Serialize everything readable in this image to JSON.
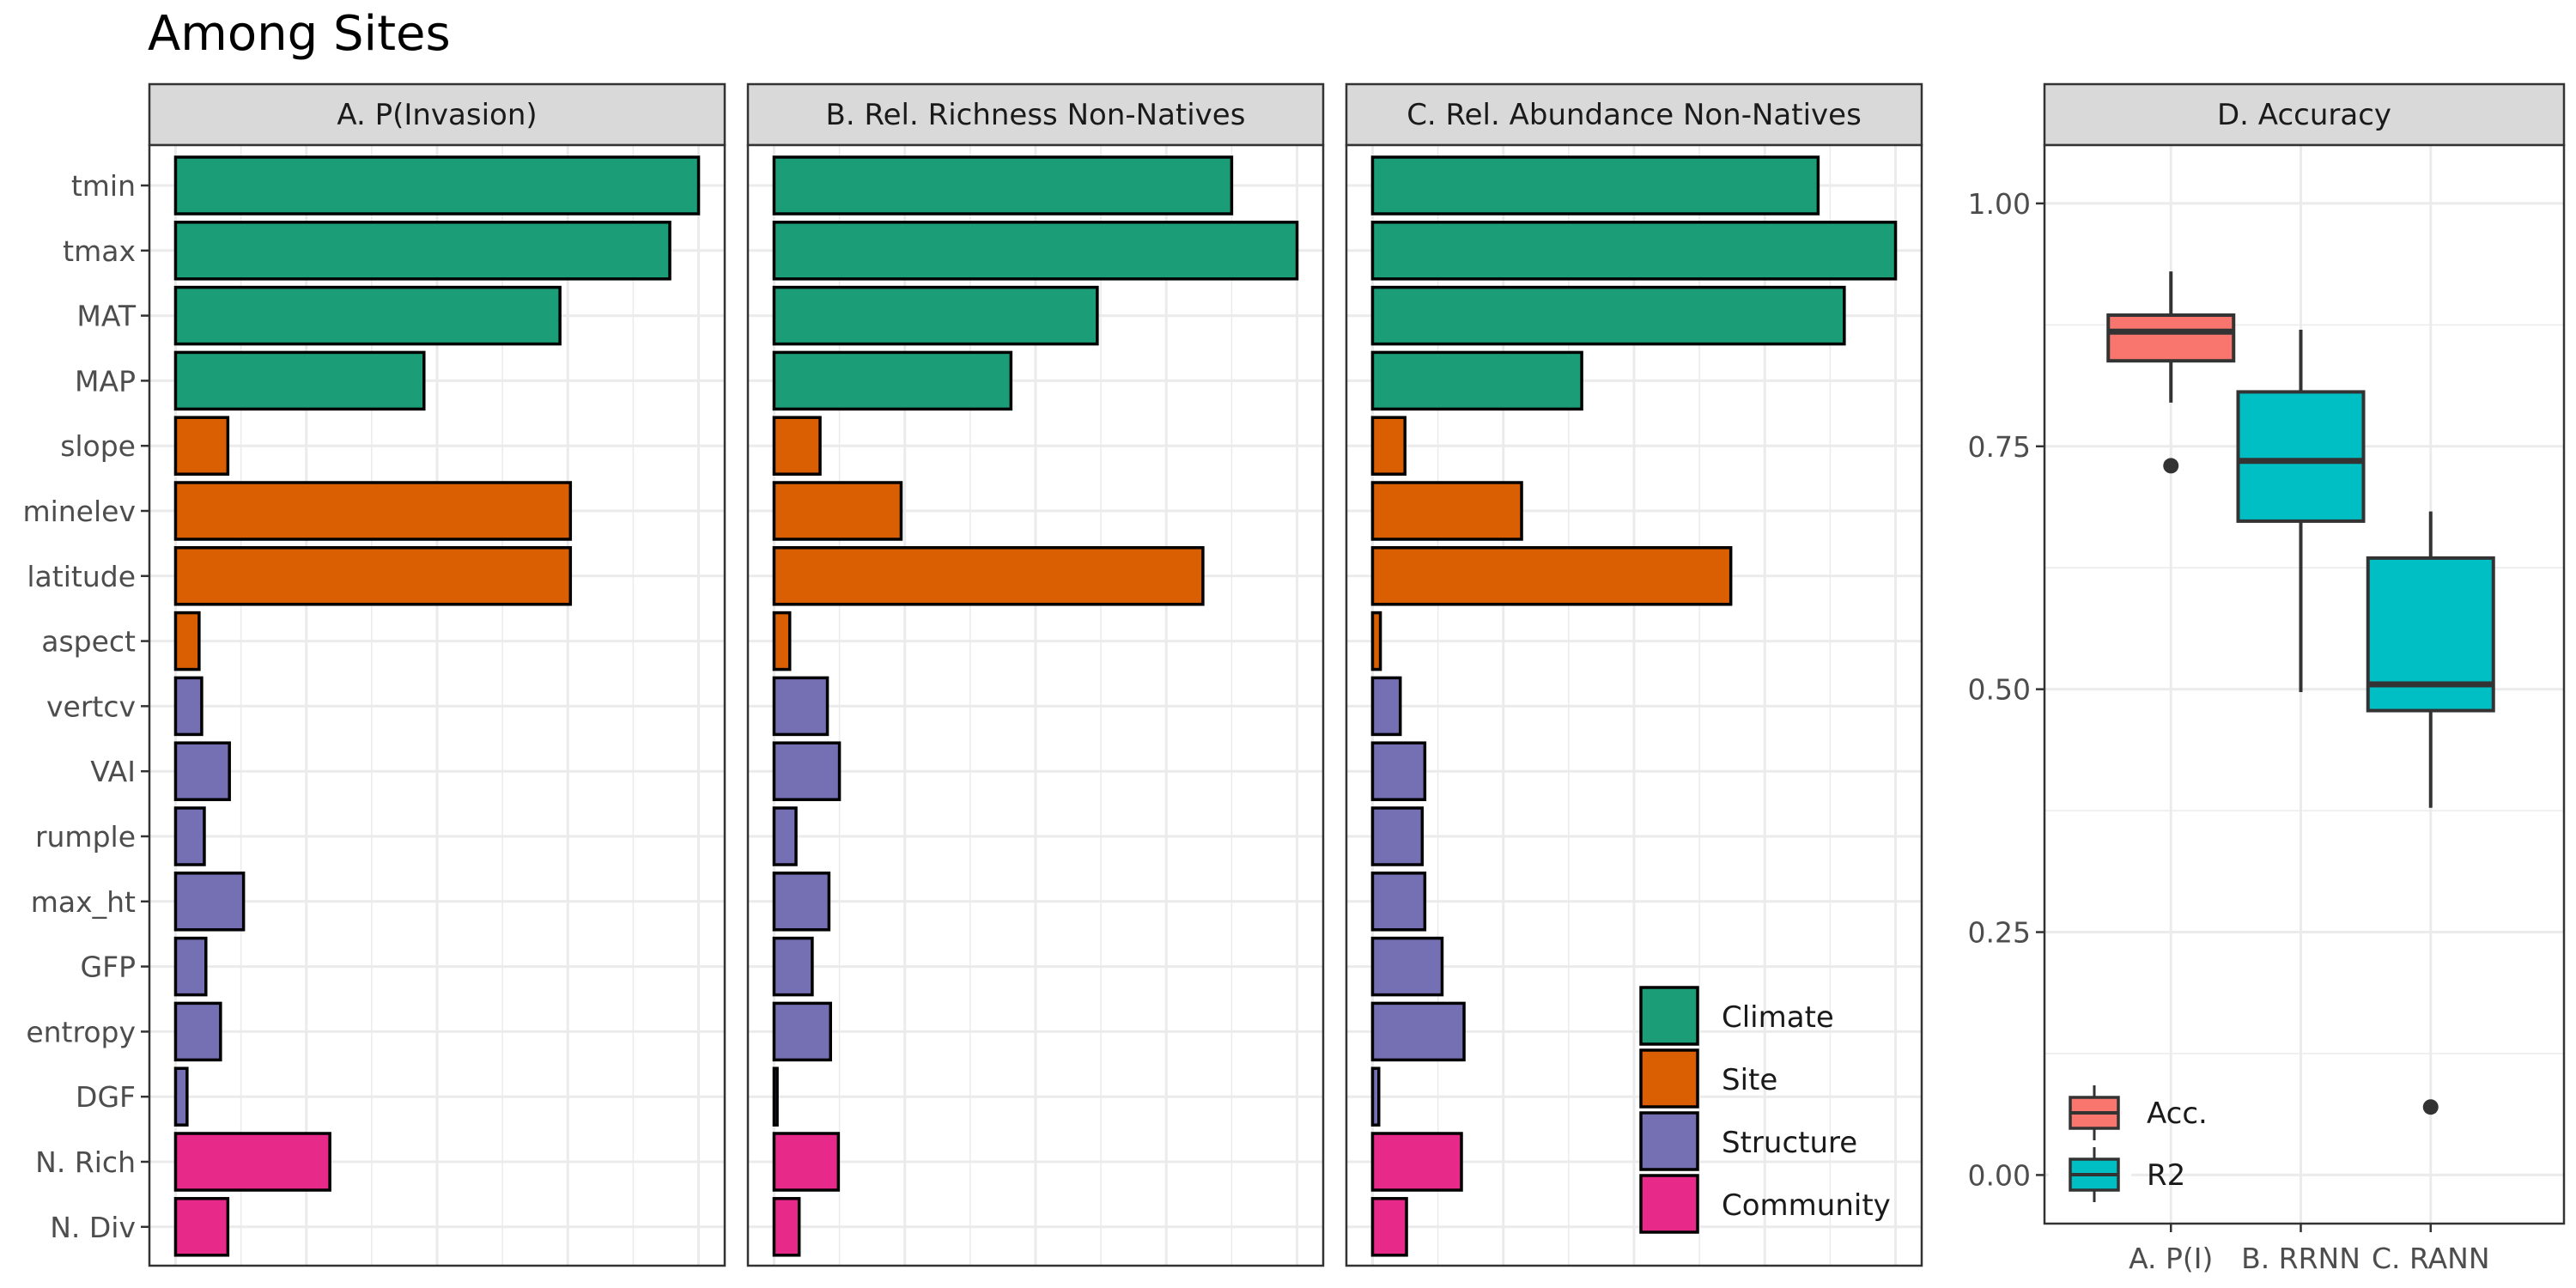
{
  "page_title": "Among Sites",
  "colors": {
    "Climate": "#1B9E77",
    "Site": "#D95F02",
    "Structure": "#7570B3",
    "Community": "#E7298A",
    "Acc.": "#F8766D",
    "R2": "#00BFC4"
  },
  "chart_data": [
    {
      "type": "bar",
      "title": "A. P(Invasion)",
      "categories": [
        "tmin",
        "tmax",
        "MAT",
        "MAP",
        "slope",
        "minelev",
        "latitude",
        "aspect",
        "vertcv",
        "VAI",
        "rumple",
        "max_ht",
        "GFP",
        "entropy",
        "DGF",
        "N. Rich",
        "N. Div"
      ],
      "groups": [
        "Climate",
        "Climate",
        "Climate",
        "Climate",
        "Site",
        "Site",
        "Site",
        "Site",
        "Structure",
        "Structure",
        "Structure",
        "Structure",
        "Structure",
        "Structure",
        "Structure",
        "Community",
        "Community"
      ],
      "values": [
        100,
        94.5,
        73.5,
        47.5,
        10,
        75.5,
        75.5,
        4.5,
        5,
        10.3,
        5.5,
        13,
        5.8,
        8.6,
        2.2,
        29.5,
        10
      ],
      "xlim": [
        -5,
        105
      ]
    },
    {
      "type": "bar",
      "title": "B. Rel. Richness Non-Natives",
      "categories": [
        "tmin",
        "tmax",
        "MAT",
        "MAP",
        "slope",
        "minelev",
        "latitude",
        "aspect",
        "vertcv",
        "VAI",
        "rumple",
        "max_ht",
        "GFP",
        "entropy",
        "DGF",
        "N. Rich",
        "N. Div"
      ],
      "groups": [
        "Climate",
        "Climate",
        "Climate",
        "Climate",
        "Site",
        "Site",
        "Site",
        "Site",
        "Structure",
        "Structure",
        "Structure",
        "Structure",
        "Structure",
        "Structure",
        "Structure",
        "Community",
        "Community"
      ],
      "values": [
        87.5,
        100,
        61.8,
        45.3,
        8.8,
        24.3,
        82,
        3,
        10.2,
        12.5,
        4.2,
        10.5,
        7.3,
        10.8,
        0.6,
        12.3,
        4.8
      ],
      "xlim": [
        -5,
        105
      ]
    },
    {
      "type": "bar",
      "title": "C. Rel. Abundance Non-Natives",
      "categories": [
        "tmin",
        "tmax",
        "MAT",
        "MAP",
        "slope",
        "minelev",
        "latitude",
        "aspect",
        "vertcv",
        "VAI",
        "rumple",
        "max_ht",
        "GFP",
        "entropy",
        "DGF",
        "N. Rich",
        "N. Div"
      ],
      "groups": [
        "Climate",
        "Climate",
        "Climate",
        "Climate",
        "Site",
        "Site",
        "Site",
        "Site",
        "Structure",
        "Structure",
        "Structure",
        "Structure",
        "Structure",
        "Structure",
        "Structure",
        "Community",
        "Community"
      ],
      "values": [
        85.2,
        100,
        90.2,
        40,
        6.2,
        28.5,
        68.5,
        1.5,
        5.3,
        10,
        9.5,
        10,
        13.3,
        17.5,
        1.2,
        17,
        6.5
      ],
      "xlim": [
        -5,
        105
      ]
    },
    {
      "type": "box",
      "title": "D. Accuracy",
      "categories": [
        "A. P(I)",
        "B. RRNN",
        "C. RANN"
      ],
      "fill_groups": [
        "Acc.",
        "R2",
        "R2"
      ],
      "boxes": [
        {
          "whisker_low": 0.795,
          "q1": 0.838,
          "median": 0.868,
          "q3": 0.885,
          "whisker_high": 0.93,
          "outliers": [
            0.73
          ]
        },
        {
          "whisker_low": 0.497,
          "q1": 0.673,
          "median": 0.735,
          "q3": 0.806,
          "whisker_high": 0.87,
          "outliers": []
        },
        {
          "whisker_low": 0.378,
          "q1": 0.478,
          "median": 0.505,
          "q3": 0.635,
          "whisker_high": 0.683,
          "outliers": [
            0.07
          ]
        }
      ],
      "ylim": [
        -0.05,
        1.06
      ],
      "yticks": [
        0.0,
        0.25,
        0.5,
        0.75,
        1.0
      ],
      "ytick_labels": [
        "0.00",
        "0.25",
        "0.50",
        "0.75",
        "1.00"
      ]
    }
  ],
  "legend_groups": {
    "items": [
      "Climate",
      "Site",
      "Structure",
      "Community"
    ],
    "placement": "bottom-right of panel C"
  },
  "legend_accuracy": {
    "items": [
      "Acc.",
      "R2"
    ],
    "placement": "bottom-left of panel D"
  }
}
